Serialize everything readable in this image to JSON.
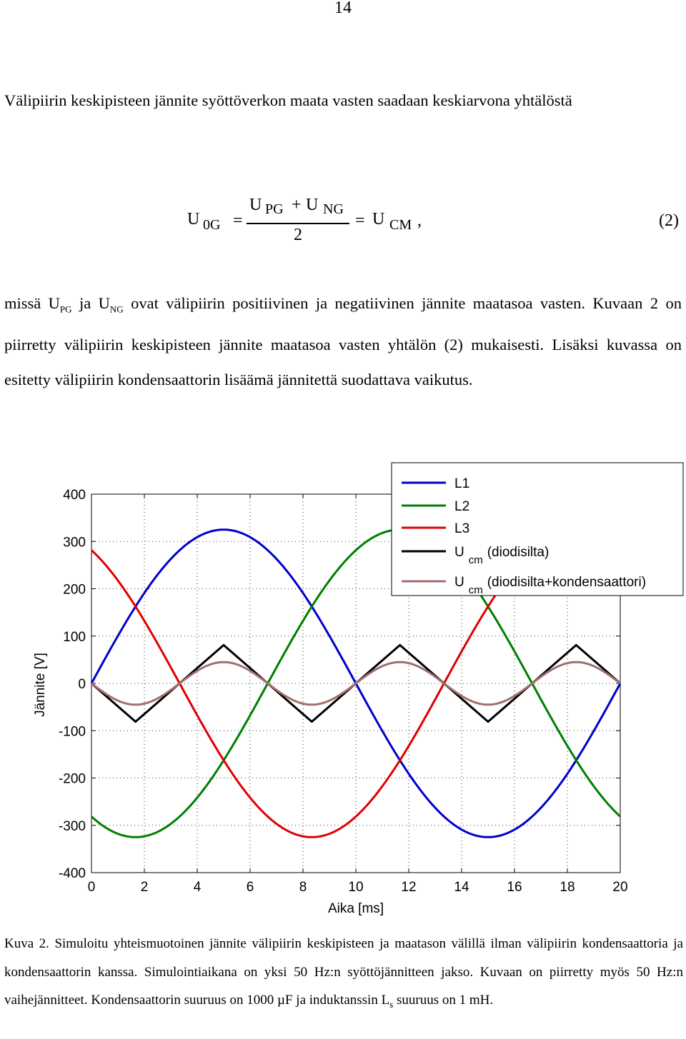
{
  "page_number": "14",
  "paragraph1": "Välipiirin keskipisteen jännite syöttöverkon maata vasten saadaan keskiarvona yhtälöstä",
  "equation": {
    "lhs_main": "U",
    "lhs_sub": "0G",
    "eq1": "=",
    "num_a": "U",
    "num_a_sub": "PG",
    "plus": "+",
    "num_b": "U",
    "num_b_sub": "NG",
    "den": "2",
    "eq2": "=",
    "rhs_main": "U",
    "rhs_sub": "CM",
    "comma": ",",
    "number": "(2)"
  },
  "paragraph2": {
    "t1": "missä U",
    "s1": "PG",
    "t2": " ja U",
    "s2": "NG",
    "t3": " ovat välipiirin positiivinen ja negatiivinen jännite maatasoa vasten. Kuvaan 2 on piirretty välipiirin keskipisteen jännite maatasoa vasten yhtälön (2) mukaisesti. Lisäksi kuvassa on esitetty välipiirin kondensaattorin lisäämä jännitettä suodattava vaikutus."
  },
  "chart_data": {
    "type": "line",
    "xlabel": "Aika [ms]",
    "ylabel": "Jännite [V]",
    "xlim": [
      0,
      20
    ],
    "ylim": [
      -400,
      400
    ],
    "xticks": [
      "0",
      "2",
      "4",
      "6",
      "8",
      "10",
      "12",
      "14",
      "16",
      "18",
      "20"
    ],
    "yticks": [
      "400",
      "300",
      "200",
      "100",
      "0",
      "-100",
      "-200",
      "-300",
      "-400"
    ],
    "grid": true,
    "legend_position": "top-right",
    "frequency_hz": 50,
    "series": [
      {
        "name": "L1",
        "color": "#0000cc",
        "amplitude": 325,
        "phase_deg": 0,
        "x": [
          0,
          1,
          2,
          3,
          4,
          5,
          6,
          7,
          8,
          9,
          10,
          11,
          12,
          13,
          14,
          15,
          16,
          17,
          18,
          19,
          20
        ],
        "y": [
          0,
          100,
          191,
          263,
          309,
          325,
          309,
          263,
          191,
          100,
          0,
          -100,
          -191,
          -263,
          -309,
          -325,
          -309,
          -263,
          -191,
          -100,
          0
        ]
      },
      {
        "name": "L2",
        "color": "#007f00",
        "amplitude": 325,
        "phase_deg": -120,
        "x": [
          0,
          1,
          2,
          3,
          4,
          5,
          6,
          7,
          8,
          9,
          10,
          11,
          12,
          13,
          14,
          15,
          16,
          17,
          18,
          19,
          20
        ],
        "y": [
          -281,
          -316,
          -323,
          -301,
          -254,
          -163,
          -67,
          34,
          132,
          221,
          281,
          316,
          323,
          301,
          254,
          163,
          67,
          -34,
          -132,
          -221,
          -281
        ]
      },
      {
        "name": "L3",
        "color": "#e00000",
        "amplitude": 325,
        "phase_deg": 120,
        "x": [
          0,
          1,
          2,
          3,
          4,
          5,
          6,
          7,
          8,
          9,
          10,
          11,
          12,
          13,
          14,
          15,
          16,
          17,
          18,
          19,
          20
        ],
        "y": [
          281,
          216,
          132,
          34,
          -67,
          -163,
          -243,
          -301,
          -323,
          -316,
          -281,
          -216,
          -132,
          -34,
          67,
          163,
          243,
          301,
          323,
          316,
          281
        ]
      },
      {
        "name": "U_cm (diodisilta)",
        "label_main": "U",
        "label_sub": "cm",
        "label_rest": "(diodisilta)",
        "color": "#000000",
        "x": [
          0,
          1.667,
          3.333,
          5,
          6.667,
          8.333,
          10,
          11.667,
          13.333,
          15,
          16.667,
          18.333,
          20
        ],
        "y": [
          0,
          -81,
          0,
          81,
          0,
          -81,
          0,
          81,
          0,
          -81,
          0,
          81,
          0
        ]
      },
      {
        "name": "U_cm (diodisilta+kondensaattori)",
        "label_main": "U",
        "label_sub": "cm",
        "label_rest": "(diodisilta+kondensaattori)",
        "color": "#a07070",
        "amplitude": 45,
        "x": [
          0,
          1.667,
          3.333,
          5,
          6.667,
          8.333,
          10,
          11.667,
          13.333,
          15,
          16.667,
          18.333,
          20
        ],
        "y": [
          0,
          -45,
          0,
          45,
          0,
          -45,
          0,
          45,
          0,
          -45,
          0,
          45,
          0
        ]
      }
    ]
  },
  "caption": {
    "label": "Kuva 2.",
    "t1": " Simuloitu yhteismuotoinen jännite välipiirin keskipisteen ja maatason välillä ilman välipiirin kondensaattoria ja kondensaattorin kanssa. Simulointiaikana on yksi 50 Hz:n syöttöjännitteen jakso. Kuvaan on piirretty myös 50 Hz:n vaihejännitteet. Kondensaattorin suuruus on 1000 µF ja induktanssin L",
    "sub": "s",
    "t2": " suuruus on 1 mH."
  }
}
